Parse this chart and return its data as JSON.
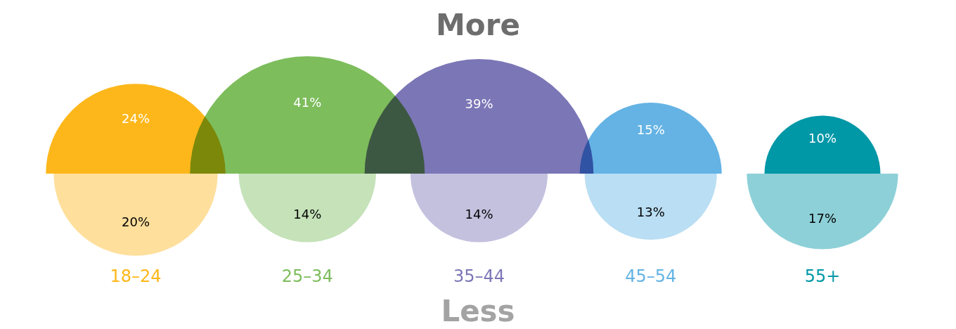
{
  "chart_data": {
    "type": "other",
    "categories": [
      "18–24",
      "25–34",
      "35–44",
      "45–54",
      "55+"
    ],
    "annotations": [
      "More",
      "Less"
    ],
    "series": [
      {
        "colors": [
          "#fdb71a",
          "#7dbd5c",
          "#7b76b6",
          "#64b3e4",
          "#0097a7"
        ],
        "values": [
          24,
          41,
          39,
          15,
          10
        ],
        "value_labels": [
          "24%",
          "41%",
          "39%",
          "15%",
          "10%"
        ]
      },
      {
        "colors": [
          "#fedf9c",
          "#c5e2b9",
          "#c4c1df",
          "#badef3",
          "#8dd0d8"
        ],
        "values": [
          20,
          14,
          14,
          13,
          17
        ],
        "value_labels": [
          "20%",
          "14%",
          "14%",
          "13%",
          "17%"
        ]
      }
    ]
  }
}
